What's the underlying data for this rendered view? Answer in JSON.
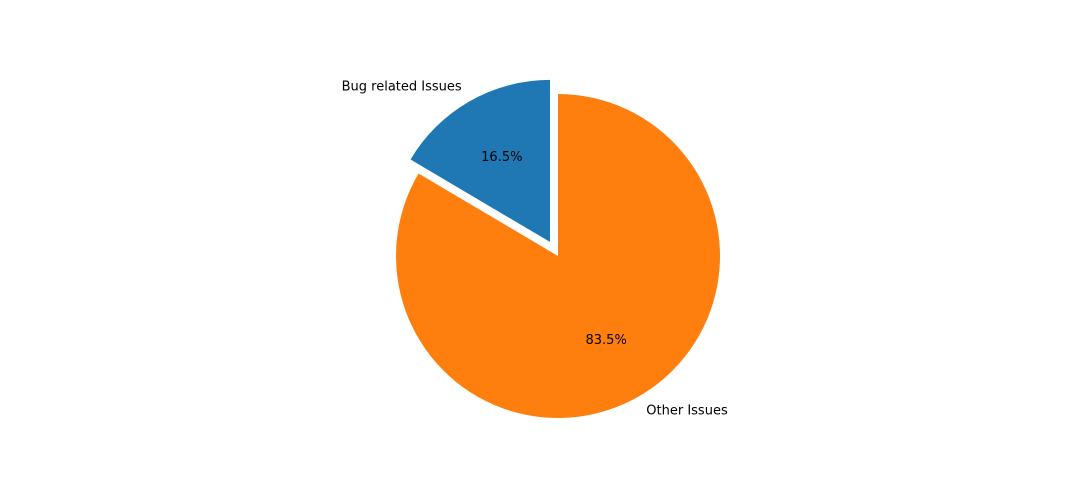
{
  "chart_data": {
    "type": "pie",
    "slices": [
      {
        "label": "Bug related Issues",
        "value": 16.5,
        "pct_label": "16.5%",
        "color": "#1f77b4",
        "exploded": true
      },
      {
        "label": "Other Issues",
        "value": 83.5,
        "pct_label": "83.5%",
        "color": "#ff7f0e",
        "exploded": false
      }
    ],
    "start_angle_deg": 90,
    "direction": "counterclockwise",
    "title": "",
    "legend": false
  }
}
